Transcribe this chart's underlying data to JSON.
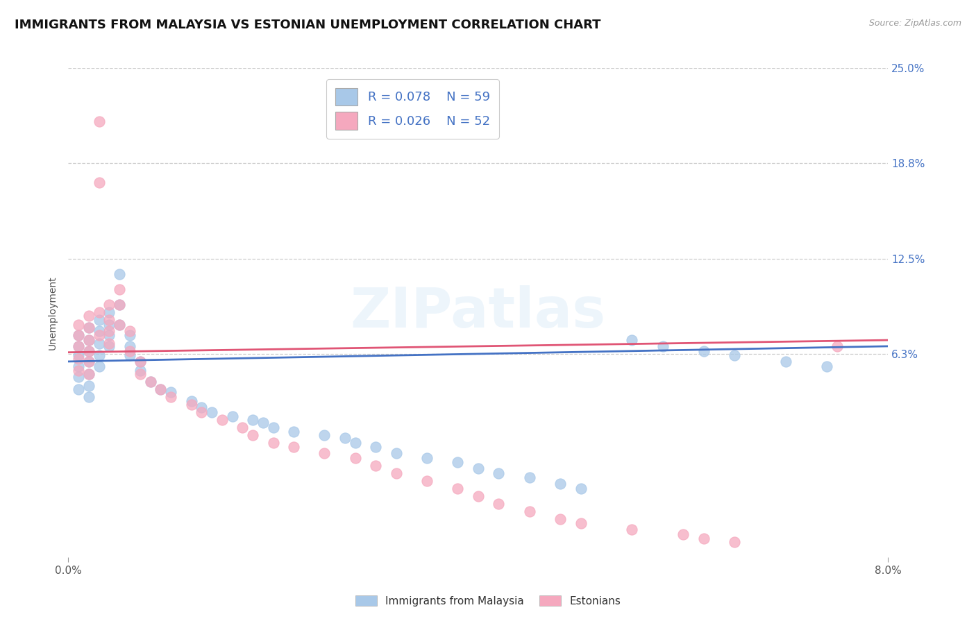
{
  "title": "IMMIGRANTS FROM MALAYSIA VS ESTONIAN UNEMPLOYMENT CORRELATION CHART",
  "source_text": "Source: ZipAtlas.com",
  "ylabel": "Unemployment",
  "x_min": 0.0,
  "x_max": 0.08,
  "y_min": -0.07,
  "y_max": 0.25,
  "y_tick_positions": [
    0.063,
    0.125,
    0.188,
    0.25
  ],
  "y_tick_labels": [
    "6.3%",
    "12.5%",
    "18.8%",
    "25.0%"
  ],
  "legend_labels": [
    "Immigrants from Malaysia",
    "Estonians"
  ],
  "series1_color": "#a8c8e8",
  "series2_color": "#f5a8be",
  "line1_color": "#4472c4",
  "line2_color": "#e05575",
  "R1": 0.078,
  "N1": 59,
  "R2": 0.026,
  "N2": 52,
  "background_color": "#ffffff",
  "title_fontsize": 13,
  "label_fontsize": 10,
  "tick_fontsize": 11,
  "series1_x": [
    0.001,
    0.001,
    0.001,
    0.001,
    0.001,
    0.001,
    0.002,
    0.002,
    0.002,
    0.002,
    0.002,
    0.002,
    0.002,
    0.003,
    0.003,
    0.003,
    0.003,
    0.003,
    0.004,
    0.004,
    0.004,
    0.004,
    0.005,
    0.005,
    0.005,
    0.006,
    0.006,
    0.006,
    0.007,
    0.007,
    0.008,
    0.009,
    0.01,
    0.012,
    0.013,
    0.014,
    0.016,
    0.018,
    0.019,
    0.02,
    0.022,
    0.025,
    0.027,
    0.028,
    0.03,
    0.032,
    0.035,
    0.038,
    0.04,
    0.042,
    0.045,
    0.048,
    0.05,
    0.055,
    0.058,
    0.062,
    0.065,
    0.07,
    0.074
  ],
  "series1_y": [
    0.075,
    0.068,
    0.062,
    0.055,
    0.048,
    0.04,
    0.08,
    0.072,
    0.065,
    0.058,
    0.05,
    0.042,
    0.035,
    0.085,
    0.078,
    0.07,
    0.062,
    0.055,
    0.09,
    0.082,
    0.075,
    0.068,
    0.115,
    0.095,
    0.082,
    0.075,
    0.068,
    0.062,
    0.058,
    0.052,
    0.045,
    0.04,
    0.038,
    0.032,
    0.028,
    0.025,
    0.022,
    0.02,
    0.018,
    0.015,
    0.012,
    0.01,
    0.008,
    0.005,
    0.002,
    -0.002,
    -0.005,
    -0.008,
    -0.012,
    -0.015,
    -0.018,
    -0.022,
    -0.025,
    0.072,
    0.068,
    0.065,
    0.062,
    0.058,
    0.055
  ],
  "series2_x": [
    0.001,
    0.001,
    0.001,
    0.001,
    0.001,
    0.002,
    0.002,
    0.002,
    0.002,
    0.002,
    0.002,
    0.003,
    0.003,
    0.003,
    0.003,
    0.004,
    0.004,
    0.004,
    0.004,
    0.005,
    0.005,
    0.005,
    0.006,
    0.006,
    0.007,
    0.007,
    0.008,
    0.009,
    0.01,
    0.012,
    0.013,
    0.015,
    0.017,
    0.018,
    0.02,
    0.022,
    0.025,
    0.028,
    0.03,
    0.032,
    0.035,
    0.038,
    0.04,
    0.042,
    0.045,
    0.048,
    0.05,
    0.055,
    0.06,
    0.062,
    0.065,
    0.075
  ],
  "series2_y": [
    0.082,
    0.075,
    0.068,
    0.06,
    0.052,
    0.088,
    0.08,
    0.072,
    0.065,
    0.058,
    0.05,
    0.175,
    0.215,
    0.09,
    0.075,
    0.095,
    0.085,
    0.078,
    0.07,
    0.105,
    0.095,
    0.082,
    0.078,
    0.065,
    0.058,
    0.05,
    0.045,
    0.04,
    0.035,
    0.03,
    0.025,
    0.02,
    0.015,
    0.01,
    0.005,
    0.002,
    -0.002,
    -0.005,
    -0.01,
    -0.015,
    -0.02,
    -0.025,
    -0.03,
    -0.035,
    -0.04,
    -0.045,
    -0.048,
    -0.052,
    -0.055,
    -0.058,
    -0.06,
    0.068
  ]
}
